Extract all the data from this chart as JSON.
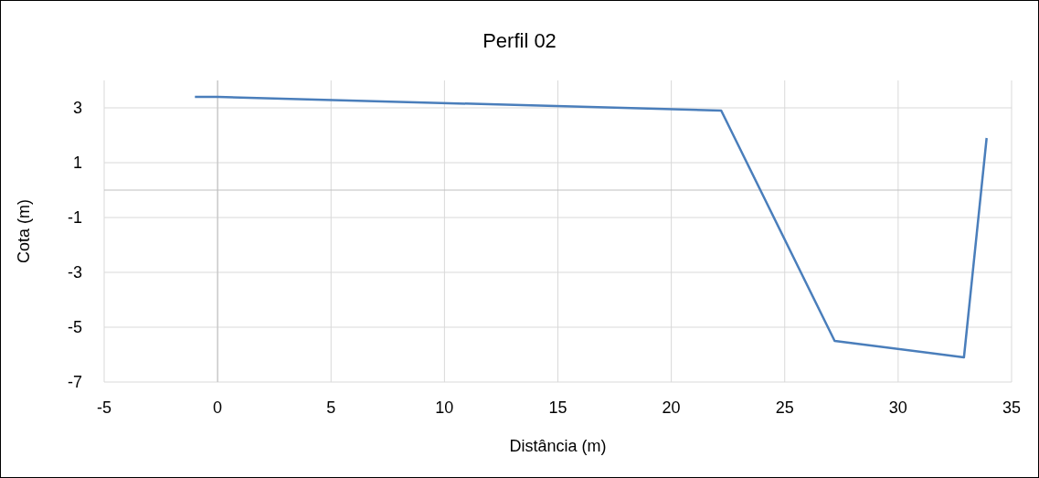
{
  "chart_data": {
    "type": "line",
    "title": "Perfil 02",
    "xlabel": "Distância (m)",
    "ylabel": "Cota (m)",
    "x": [
      -1,
      0,
      22.2,
      27.2,
      32.9,
      33.9
    ],
    "series": [
      {
        "color": "#4a7ebb",
        "values": [
          3.4,
          3.4,
          2.9,
          -5.5,
          -6.1,
          1.9
        ]
      }
    ],
    "xlim": [
      -5,
      35
    ],
    "xticks": [
      -5,
      0,
      5,
      10,
      15,
      20,
      25,
      30,
      35
    ],
    "ylim": [
      -7,
      4
    ],
    "yticks": [
      -7,
      -5,
      -3,
      -1,
      1,
      3
    ],
    "grid": true,
    "marker": "none",
    "line_style": "solid"
  }
}
